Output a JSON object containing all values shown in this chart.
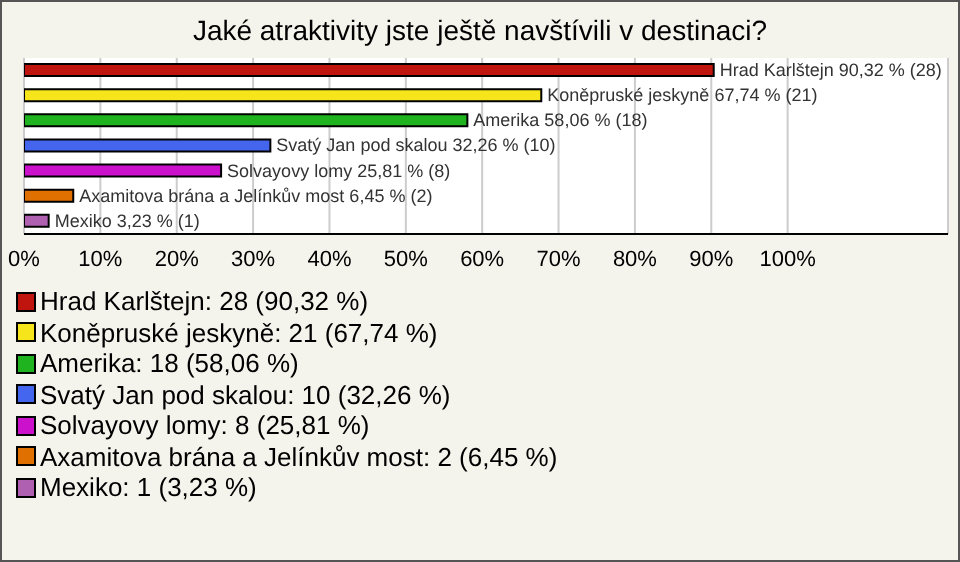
{
  "chart_data": {
    "type": "bar",
    "orientation": "horizontal",
    "stacked": true,
    "title": "Jaké atraktivity jste ještě navštívili v destinaci?",
    "categories": [
      null,
      null,
      null,
      null,
      null,
      null,
      null
    ],
    "series": [
      {
        "name": "Hrad Karlštejn: 28 (90,32 %)",
        "color": "#c0150f",
        "values": [
          90.32,
          null,
          null,
          null,
          null,
          null,
          null
        ],
        "value_labels": [
          "Hrad Karlštejn 90,32 % (28)",
          null,
          null,
          null,
          null,
          null,
          null
        ]
      },
      {
        "name": "Koněpruské jeskyně: 21 (67,74 %)",
        "color": "#f5e51a",
        "values": [
          null,
          67.74,
          null,
          null,
          null,
          null,
          null
        ],
        "value_labels": [
          null,
          "Koněpruské jeskyně 67,74 % (21)",
          null,
          null,
          null,
          null,
          null
        ]
      },
      {
        "name": "Amerika: 18 (58,06 %)",
        "color": "#1fb41f",
        "values": [
          null,
          null,
          58.06,
          null,
          null,
          null,
          null
        ],
        "value_labels": [
          null,
          null,
          "Amerika 58,06 % (18)",
          null,
          null,
          null,
          null
        ]
      },
      {
        "name": "Svatý Jan pod skalou: 10 (32,26 %)",
        "color": "#4466ee",
        "values": [
          null,
          null,
          null,
          32.26,
          null,
          null,
          null
        ],
        "value_labels": [
          null,
          null,
          null,
          "Svatý Jan pod skalou 32,26 % (10)",
          null,
          null,
          null
        ]
      },
      {
        "name": "Solvayovy lomy: 8 (25,81 %)",
        "color": "#cc11cc",
        "values": [
          null,
          null,
          null,
          null,
          25.81,
          null,
          null
        ],
        "value_labels": [
          null,
          null,
          null,
          null,
          "Solvayovy lomy 25,81 % (8)",
          null,
          null
        ]
      },
      {
        "name": "Axamitova brána a Jelínkův most: 2 (6,45 %)",
        "color": "#e07000",
        "values": [
          null,
          null,
          null,
          null,
          null,
          6.45,
          null
        ],
        "value_labels": [
          null,
          null,
          null,
          null,
          null,
          "Axamitova brána a Jelínkův most 6,45 % (2)",
          null
        ]
      },
      {
        "name": "Mexiko: 1 (3,23 %)",
        "color": "#b060b0",
        "values": [
          null,
          null,
          null,
          null,
          null,
          null,
          3.23
        ],
        "value_labels": [
          null,
          null,
          null,
          null,
          null,
          null,
          "Mexiko 3,23 % (1)"
        ]
      }
    ],
    "xlim": [
      0,
      121
    ],
    "xticks": [
      {
        "value": 0,
        "label": "0%"
      },
      {
        "value": 10,
        "label": "10%"
      },
      {
        "value": 20,
        "label": "20%"
      },
      {
        "value": 30,
        "label": "30%"
      },
      {
        "value": 40,
        "label": "40%"
      },
      {
        "value": 50,
        "label": "50%"
      },
      {
        "value": 60,
        "label": "60%"
      },
      {
        "value": 70,
        "label": "70%"
      },
      {
        "value": 80,
        "label": "80%"
      },
      {
        "value": 90,
        "label": "90%"
      },
      {
        "value": 100,
        "label": "100%"
      }
    ],
    "grid": "x",
    "legend": "bottom",
    "tick_labels": "x"
  }
}
